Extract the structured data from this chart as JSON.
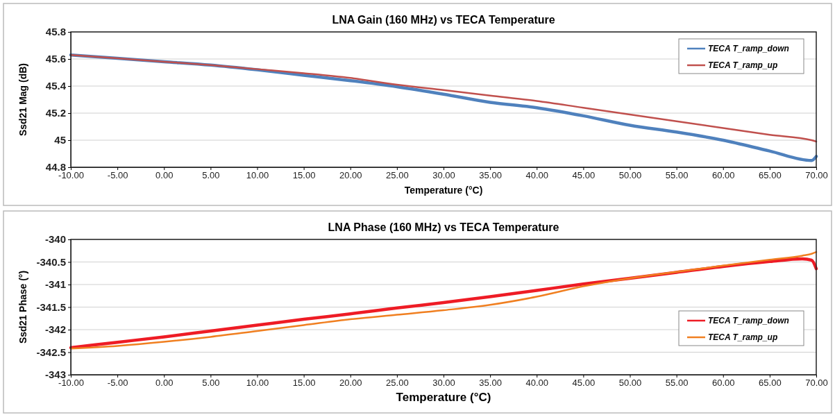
{
  "chart_data": [
    {
      "type": "line",
      "title": "LNA Gain (160 MHz) vs TECA Temperature",
      "xlabel": "Temperature (°C)",
      "ylabel": "Ssd21 Mag (dB)",
      "x": [
        -10,
        -5,
        0,
        5,
        10,
        15,
        20,
        25,
        30,
        35,
        40,
        45,
        50,
        55,
        60,
        65,
        69.5,
        70
      ],
      "xlim": [
        -10,
        70
      ],
      "xticks": [
        {
          "value": -10,
          "label": "-10.00"
        },
        {
          "value": -5,
          "label": "-5.00"
        },
        {
          "value": 0,
          "label": "0.00"
        },
        {
          "value": 5,
          "label": "5.00"
        },
        {
          "value": 10,
          "label": "10.00"
        },
        {
          "value": 15,
          "label": "15.00"
        },
        {
          "value": 20,
          "label": "20.00"
        },
        {
          "value": 25,
          "label": "25.00"
        },
        {
          "value": 30,
          "label": "30.00"
        },
        {
          "value": 35,
          "label": "35.00"
        },
        {
          "value": 40,
          "label": "40.00"
        },
        {
          "value": 45,
          "label": "45.00"
        },
        {
          "value": 50,
          "label": "50.00"
        },
        {
          "value": 55,
          "label": "55.00"
        },
        {
          "value": 60,
          "label": "60.00"
        },
        {
          "value": 65,
          "label": "65.00"
        },
        {
          "value": 70,
          "label": "70.00"
        }
      ],
      "ylim": [
        44.8,
        45.8
      ],
      "yticks": [
        44.8,
        45,
        45.2,
        45.4,
        45.6,
        45.8
      ],
      "grid": "y",
      "legend": "top right",
      "series": [
        {
          "name": "TECA T_ramp_down",
          "color": "#4f81bd",
          "values": [
            45.63,
            45.605,
            45.58,
            45.555,
            45.52,
            45.48,
            45.44,
            45.395,
            45.34,
            45.28,
            45.24,
            45.18,
            45.11,
            45.06,
            45.0,
            44.92,
            44.85,
            44.88
          ]
        },
        {
          "name": "TECA T_ramp_up",
          "color": "#c0504d",
          "values": [
            45.63,
            45.605,
            45.58,
            45.555,
            45.525,
            45.495,
            45.46,
            45.41,
            45.37,
            45.33,
            45.29,
            45.24,
            45.19,
            45.14,
            45.09,
            45.04,
            45.0,
            44.99
          ]
        }
      ]
    },
    {
      "type": "line",
      "title": "LNA Phase (160 MHz) vs TECA Temperature",
      "xlabel": "Temperature (°C)",
      "ylabel": "Ssd21 Phase (°)",
      "x": [
        -10,
        -5,
        0,
        5,
        10,
        15,
        20,
        25,
        30,
        35,
        40,
        45,
        50,
        55,
        60,
        65,
        68.5,
        69.5,
        70
      ],
      "xlim": [
        -10,
        70
      ],
      "xticks": [
        {
          "value": -10,
          "label": "-10.00"
        },
        {
          "value": -5,
          "label": "-5.00"
        },
        {
          "value": 0,
          "label": "0.00"
        },
        {
          "value": 5,
          "label": "5.00"
        },
        {
          "value": 10,
          "label": "10.00"
        },
        {
          "value": 15,
          "label": "15.00"
        },
        {
          "value": 20,
          "label": "20.00"
        },
        {
          "value": 25,
          "label": "25.00"
        },
        {
          "value": 30,
          "label": "30.00"
        },
        {
          "value": 35,
          "label": "35.00"
        },
        {
          "value": 40,
          "label": "40.00"
        },
        {
          "value": 45,
          "label": "45.00"
        },
        {
          "value": 50,
          "label": "50.00"
        },
        {
          "value": 55,
          "label": "55.00"
        },
        {
          "value": 60,
          "label": "60.00"
        },
        {
          "value": 65,
          "label": "65.00"
        },
        {
          "value": 70,
          "label": "70.00"
        }
      ],
      "ylim": [
        -343,
        -340
      ],
      "yticks": [
        -343,
        -342.5,
        -342,
        -341.5,
        -341,
        -340.5,
        -340
      ],
      "grid": "y",
      "legend": "bottom right",
      "series": [
        {
          "name": "TECA T_ramp_down",
          "color": "#ee1c25",
          "values": [
            -342.4,
            -342.28,
            -342.16,
            -342.03,
            -341.9,
            -341.77,
            -341.65,
            -341.52,
            -341.4,
            -341.27,
            -341.13,
            -340.99,
            -340.86,
            -340.73,
            -340.6,
            -340.49,
            -340.43,
            -340.46,
            -340.65
          ]
        },
        {
          "name": "TECA T_ramp_up",
          "color": "#f07f20",
          "values": [
            -342.42,
            -342.36,
            -342.27,
            -342.16,
            -342.03,
            -341.9,
            -341.77,
            -341.67,
            -341.57,
            -341.45,
            -341.27,
            -341.04,
            -340.86,
            -340.72,
            -340.58,
            -340.45,
            -340.36,
            -340.32,
            -340.28
          ]
        }
      ]
    }
  ]
}
